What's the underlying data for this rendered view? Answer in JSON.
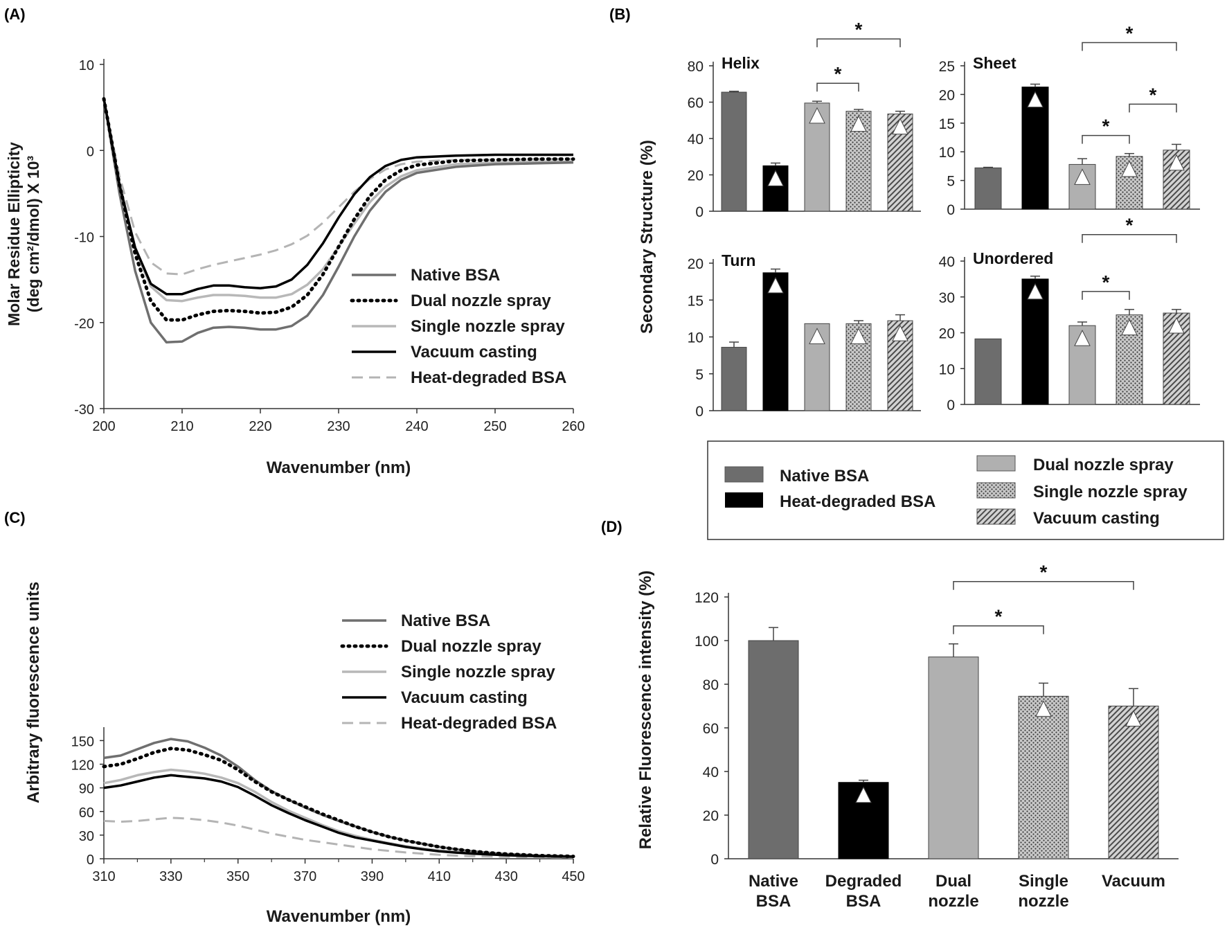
{
  "figure": {
    "panel_labels": [
      "(A)",
      "(B)",
      "(C)",
      "(D)"
    ]
  },
  "colors": {
    "native": "#6f6f6f",
    "dual": "#000000",
    "single": "#b8b8b8",
    "vacuum": "#000000",
    "heat": "#b4b4b4",
    "bar_native": "#6d6d6d",
    "bar_degraded": "#000000",
    "bar_dual": "#b0b0b0",
    "bar_single": "#a8a8a8",
    "bar_vacuum": "#a0a0a0"
  },
  "chart_data": [
    {
      "id": "A",
      "type": "line",
      "xlabel": "Wavenumber (nm)",
      "ylabel_line1": "Molar Residue Ellipticity",
      "ylabel_line2": "(deg cm²/dmol) X 10³",
      "xlim": [
        200,
        260
      ],
      "ylim": [
        -30,
        10
      ],
      "xticks": [
        200,
        210,
        220,
        230,
        240,
        250,
        260
      ],
      "yticks": [
        10,
        0,
        -10,
        -20,
        -30
      ],
      "legend_position": "right-middle",
      "series": [
        {
          "name": "Native BSA",
          "style": "native",
          "x": [
            200,
            202,
            204,
            206,
            208,
            210,
            212,
            214,
            216,
            218,
            220,
            222,
            224,
            226,
            228,
            230,
            232,
            234,
            236,
            238,
            240,
            245,
            250,
            255,
            260
          ],
          "y": [
            6,
            -5,
            -14,
            -20,
            -22.3,
            -22.2,
            -21.2,
            -20.6,
            -20.5,
            -20.6,
            -20.8,
            -20.8,
            -20.4,
            -19.2,
            -16.8,
            -13.5,
            -10,
            -7,
            -4.8,
            -3.4,
            -2.6,
            -1.9,
            -1.6,
            -1.5,
            -1.4
          ]
        },
        {
          "name": "Dual nozzle spray",
          "style": "dual",
          "x": [
            200,
            202,
            204,
            206,
            208,
            210,
            212,
            214,
            216,
            218,
            220,
            222,
            224,
            226,
            228,
            230,
            232,
            234,
            236,
            238,
            240,
            245,
            250,
            255,
            260
          ],
          "y": [
            6,
            -4,
            -12,
            -17.5,
            -19.7,
            -19.7,
            -19.1,
            -18.7,
            -18.6,
            -18.7,
            -18.9,
            -18.8,
            -18.2,
            -16.8,
            -14.4,
            -11.2,
            -8,
            -5.3,
            -3.4,
            -2.3,
            -1.7,
            -1.2,
            -1.1,
            -1,
            -1
          ]
        },
        {
          "name": "Single nozzle spray",
          "style": "single",
          "x": [
            200,
            202,
            204,
            206,
            208,
            210,
            212,
            214,
            216,
            218,
            220,
            222,
            224,
            226,
            228,
            230,
            232,
            234,
            236,
            238,
            240,
            245,
            250,
            255,
            260
          ],
          "y": [
            6,
            -4,
            -11.5,
            -15.8,
            -17.4,
            -17.5,
            -17.1,
            -16.8,
            -16.8,
            -16.9,
            -17.1,
            -17.1,
            -16.7,
            -15.6,
            -13.8,
            -11.2,
            -8.5,
            -6,
            -4.2,
            -3,
            -2.3,
            -1.6,
            -1.4,
            -1.3,
            -1.3
          ]
        },
        {
          "name": "Vacuum casting",
          "style": "vacuum",
          "x": [
            200,
            202,
            204,
            206,
            208,
            210,
            212,
            214,
            216,
            218,
            220,
            222,
            224,
            226,
            228,
            230,
            232,
            234,
            236,
            238,
            240,
            245,
            250,
            255,
            260
          ],
          "y": [
            6,
            -4,
            -11.3,
            -15.5,
            -16.7,
            -16.7,
            -16.1,
            -15.7,
            -15.7,
            -15.9,
            -16,
            -15.8,
            -15,
            -13.3,
            -10.8,
            -7.8,
            -5.1,
            -3.1,
            -1.8,
            -1.1,
            -0.8,
            -0.6,
            -0.5,
            -0.5,
            -0.5
          ]
        },
        {
          "name": "Heat-degraded BSA",
          "style": "heat",
          "x": [
            200,
            202,
            204,
            206,
            208,
            210,
            212,
            214,
            216,
            218,
            220,
            222,
            224,
            226,
            228,
            230,
            232,
            234,
            236,
            238,
            240,
            245,
            250,
            255,
            260
          ],
          "y": [
            6,
            -3,
            -9.5,
            -13,
            -14.3,
            -14.4,
            -13.8,
            -13.3,
            -12.9,
            -12.5,
            -12.1,
            -11.6,
            -10.9,
            -9.9,
            -8.4,
            -6.6,
            -4.8,
            -3.3,
            -2.2,
            -1.6,
            -1.3,
            -1.1,
            -1.1,
            -1,
            -1
          ]
        }
      ]
    },
    {
      "id": "B",
      "type": "bar",
      "ylabel": "Secondary Structure (%)",
      "categories": [
        "Native BSA",
        "Heat-degraded BSA",
        "Dual nozzle spray",
        "Single nozzle spray",
        "Vacuum casting"
      ],
      "legend_position": "bottom",
      "subplots": [
        {
          "title": "Helix",
          "ylim": [
            0,
            80
          ],
          "yticks": [
            0,
            20,
            40,
            60,
            80
          ],
          "values": [
            65.5,
            25,
            59.5,
            55,
            53.5
          ],
          "errors": [
            0.5,
            1.5,
            1,
            1,
            1.5
          ],
          "triangles": [
            false,
            true,
            true,
            true,
            true
          ],
          "significance": [
            {
              "from": 2,
              "to": 3,
              "label": "*"
            },
            {
              "from": 2,
              "to": 4,
              "label": "*"
            }
          ]
        },
        {
          "title": "Sheet",
          "ylim": [
            0,
            25
          ],
          "yticks": [
            0,
            5,
            10,
            15,
            20,
            25
          ],
          "values": [
            7.2,
            21.3,
            7.8,
            9.2,
            10.3
          ],
          "errors": [
            0.1,
            0.5,
            1,
            0.5,
            1
          ],
          "triangles": [
            false,
            true,
            true,
            true,
            true
          ],
          "significance": [
            {
              "from": 2,
              "to": 3,
              "label": "*"
            },
            {
              "from": 3,
              "to": 4,
              "label": "*"
            },
            {
              "from": 2,
              "to": 4,
              "label": "*"
            }
          ]
        },
        {
          "title": "Turn",
          "ylim": [
            0,
            20
          ],
          "yticks": [
            0,
            5,
            10,
            15,
            20
          ],
          "values": [
            8.6,
            18.7,
            11.8,
            11.8,
            12.2
          ],
          "errors": [
            0.7,
            0.5,
            0,
            0.4,
            0.8
          ],
          "triangles": [
            false,
            true,
            true,
            true,
            true
          ],
          "significance": []
        },
        {
          "title": "Unordered",
          "ylim": [
            0,
            40
          ],
          "yticks": [
            0,
            10,
            20,
            30,
            40
          ],
          "values": [
            18.3,
            35,
            22,
            25,
            25.5
          ],
          "errors": [
            0,
            0.8,
            1,
            1.5,
            1
          ],
          "triangles": [
            false,
            true,
            true,
            true,
            true
          ],
          "significance": [
            {
              "from": 2,
              "to": 3,
              "label": "*"
            },
            {
              "from": 2,
              "to": 4,
              "label": "*"
            }
          ]
        }
      ]
    },
    {
      "id": "C",
      "type": "line",
      "xlabel": "Wavenumber (nm)",
      "ylabel": "Arbitrary fluorescence units",
      "xlim": [
        310,
        450
      ],
      "ylim": [
        0,
        160
      ],
      "xticks": [
        310,
        330,
        350,
        370,
        390,
        410,
        430,
        450
      ],
      "yticks": [
        0,
        30,
        60,
        90,
        120,
        150
      ],
      "legend_position": "top-right",
      "series": [
        {
          "name": "Native BSA",
          "style": "native",
          "x": [
            310,
            315,
            320,
            325,
            330,
            335,
            340,
            345,
            350,
            355,
            360,
            365,
            370,
            375,
            380,
            385,
            390,
            395,
            400,
            405,
            410,
            415,
            420,
            425,
            430,
            435,
            440,
            445,
            450
          ],
          "y": [
            128,
            131,
            139,
            147,
            152,
            149,
            141,
            131,
            117,
            100,
            86,
            75,
            65,
            56,
            48,
            41,
            34,
            28,
            23,
            19,
            15,
            12,
            9.5,
            7.5,
            6,
            5,
            4,
            3.5,
            3
          ]
        },
        {
          "name": "Dual nozzle spray",
          "style": "dual",
          "x": [
            310,
            315,
            320,
            325,
            330,
            335,
            340,
            345,
            350,
            355,
            360,
            365,
            370,
            375,
            380,
            385,
            390,
            395,
            400,
            405,
            410,
            415,
            420,
            425,
            430,
            435,
            440,
            445,
            450
          ],
          "y": [
            117,
            120,
            127,
            135,
            140,
            138,
            132,
            125,
            113,
            98,
            85,
            75,
            66,
            57,
            49,
            41,
            34,
            28,
            23,
            19,
            15,
            12,
            9.5,
            7.5,
            6,
            5,
            4,
            3.5,
            3
          ]
        },
        {
          "name": "Single nozzle spray",
          "style": "single",
          "x": [
            310,
            315,
            320,
            325,
            330,
            335,
            340,
            345,
            350,
            355,
            360,
            365,
            370,
            375,
            380,
            385,
            390,
            395,
            400,
            405,
            410,
            415,
            420,
            425,
            430,
            435,
            440,
            445,
            450
          ],
          "y": [
            96,
            100,
            106,
            110,
            113,
            111,
            108,
            103,
            96,
            85,
            72,
            61,
            52,
            43,
            35,
            29,
            24,
            20,
            16,
            13,
            10.5,
            8.5,
            7,
            6,
            5,
            4.2,
            3.5,
            3,
            2.8
          ]
        },
        {
          "name": "Vacuum casting",
          "style": "vacuum",
          "x": [
            310,
            315,
            320,
            325,
            330,
            335,
            340,
            345,
            350,
            355,
            360,
            365,
            370,
            375,
            380,
            385,
            390,
            395,
            400,
            405,
            410,
            415,
            420,
            425,
            430,
            435,
            440,
            445,
            450
          ],
          "y": [
            90,
            93,
            98,
            103,
            106,
            104,
            102,
            98,
            91,
            80,
            68,
            58,
            49,
            41,
            33,
            27,
            23,
            19,
            15,
            12,
            9.5,
            7.8,
            6.5,
            5.5,
            4.5,
            3.8,
            3.3,
            2.9,
            2.6
          ]
        },
        {
          "name": "Heat-degraded BSA",
          "style": "heat",
          "x": [
            310,
            315,
            320,
            325,
            330,
            335,
            340,
            345,
            350,
            355,
            360,
            365,
            370,
            375,
            380,
            385,
            390,
            395,
            400,
            405,
            410,
            415,
            420,
            425,
            430,
            435,
            440,
            445,
            450
          ],
          "y": [
            48,
            47,
            48,
            50,
            52,
            51,
            49,
            46,
            42,
            37,
            32,
            28,
            24,
            21,
            18,
            15,
            12,
            10,
            8,
            6.5,
            5,
            4,
            3.3,
            2.8,
            2.4,
            2.1,
            1.8,
            1.6,
            1.5
          ]
        }
      ]
    },
    {
      "id": "D",
      "type": "bar",
      "ylabel": "Relative Fluorescence intensity (%)",
      "ylim": [
        0,
        120
      ],
      "yticks": [
        0,
        20,
        40,
        60,
        80,
        100,
        120
      ],
      "categories": [
        [
          "Native",
          "BSA"
        ],
        [
          "Degraded",
          "BSA"
        ],
        [
          "Dual",
          "nozzle"
        ],
        [
          "Single",
          "nozzle"
        ],
        [
          "Vacuum"
        ]
      ],
      "values": [
        100,
        35,
        92.5,
        74.5,
        70
      ],
      "errors": [
        6,
        1,
        6,
        6,
        8
      ],
      "triangles": [
        false,
        true,
        false,
        true,
        true
      ],
      "significance": [
        {
          "from": 2,
          "to": 3,
          "label": "*"
        },
        {
          "from": 2,
          "to": 4,
          "label": "*"
        }
      ]
    }
  ],
  "legend_B": {
    "items": [
      "Native BSA",
      "Heat-degraded BSA",
      "Dual nozzle spray",
      "Single nozzle spray",
      "Vacuum casting"
    ]
  }
}
